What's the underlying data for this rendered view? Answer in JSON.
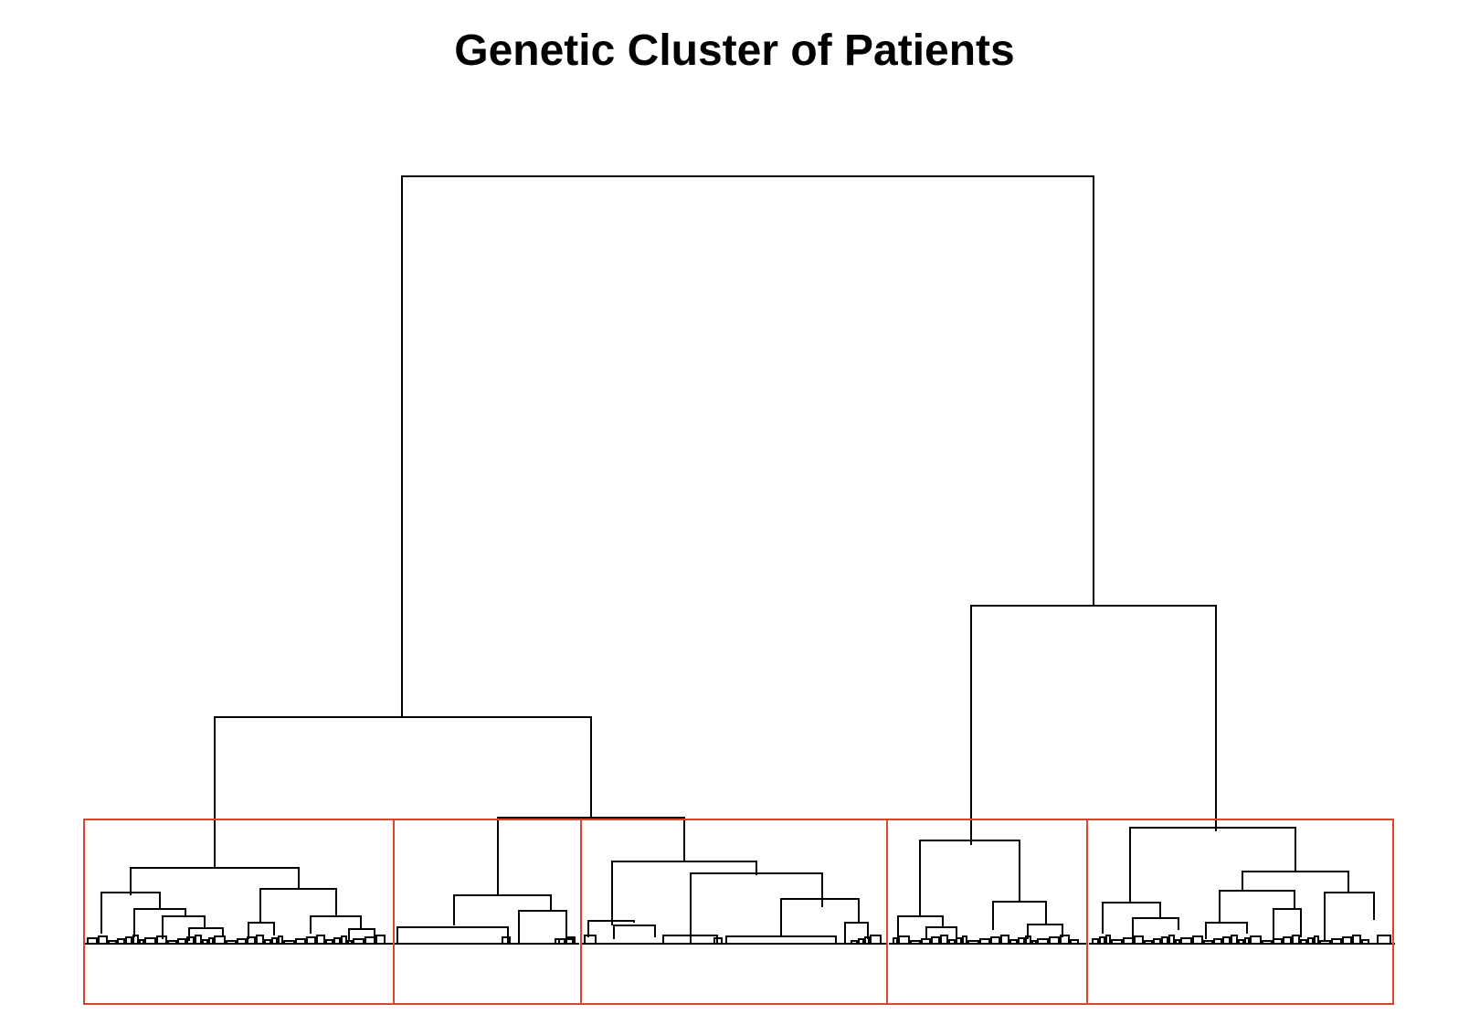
{
  "title": "Genetic Cluster of Patients",
  "colors": {
    "branch": "#000000",
    "cluster_box": "#d9472b",
    "background": "#ffffff"
  },
  "chart_data": {
    "type": "dendrogram",
    "title": "Genetic Cluster of Patients",
    "cluster_count": 5,
    "axes_shown": false,
    "leaf_labels_shown": false,
    "description_of_structure": "root splits into two groups; left group splits into cluster 1 and a subtree containing clusters 2 and 3; right group splits into clusters 4 and 5"
  }
}
